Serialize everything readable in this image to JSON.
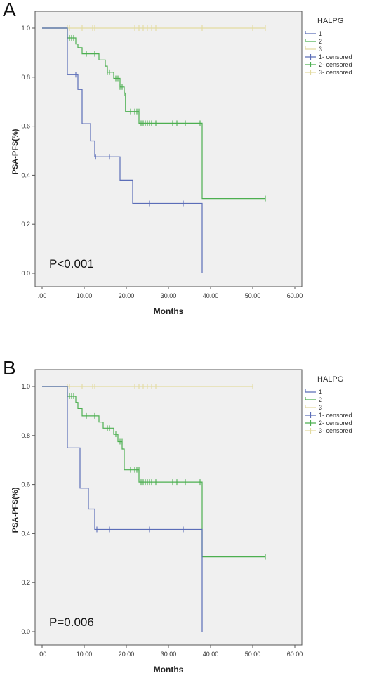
{
  "colors": {
    "g1": "#5b6db8",
    "g2": "#4caf50",
    "g3": "#e3dba0",
    "plot_bg": "#f0f0f0",
    "axis": "#555555"
  },
  "panels": [
    {
      "letter": "A",
      "pvalue": "P<0.001",
      "ylabel": "PSA-PFS(%)",
      "xlabel": "Months",
      "legend_title": "HALPG",
      "legend": [
        "1",
        "2",
        "3",
        "1- censored",
        "2- censored",
        "3- censored"
      ],
      "xticks": [
        ".00",
        "10.00",
        "20.00",
        "30.00",
        "40.00",
        "50.00",
        "60.00"
      ],
      "yticks": [
        "0.0",
        "0.2",
        "0.4",
        "0.6",
        "0.8",
        "1.0"
      ]
    },
    {
      "letter": "B",
      "pvalue": "P=0.006",
      "ylabel": "PSA-PFS(%)",
      "xlabel": "Months",
      "legend_title": "HALPG",
      "legend": [
        "1",
        "2",
        "3",
        "1- censored",
        "2- censored",
        "3- censored"
      ],
      "xticks": [
        ".00",
        "10.00",
        "20.00",
        "30.00",
        "40.00",
        "50.00",
        "60.00"
      ],
      "yticks": [
        "0.0",
        "0.2",
        "0.4",
        "0.6",
        "0.8",
        "1.0"
      ]
    }
  ],
  "chart_data": [
    {
      "type": "line",
      "title": "A",
      "xlabel": "Months",
      "ylabel": "PSA-PFS(%)",
      "xlim": [
        0,
        60
      ],
      "ylim": [
        0,
        1.0
      ],
      "annotation": "P<0.001",
      "legend_title": "HALPG",
      "series": [
        {
          "name": "1",
          "step": [
            [
              0,
              1.0
            ],
            [
              6,
              1.0
            ],
            [
              6,
              0.81
            ],
            [
              8.5,
              0.81
            ],
            [
              8.5,
              0.75
            ],
            [
              9.5,
              0.75
            ],
            [
              9.5,
              0.61
            ],
            [
              11.5,
              0.61
            ],
            [
              11.5,
              0.54
            ],
            [
              12.5,
              0.54
            ],
            [
              12.5,
              0.475
            ],
            [
              18.5,
              0.475
            ],
            [
              18.5,
              0.38
            ],
            [
              21.5,
              0.38
            ],
            [
              21.5,
              0.285
            ],
            [
              38,
              0.285
            ],
            [
              38,
              0.0
            ]
          ],
          "censored": [
            [
              8,
              0.81
            ],
            [
              12.7,
              0.475
            ],
            [
              16,
              0.475
            ],
            [
              25.5,
              0.285
            ],
            [
              33.5,
              0.285
            ]
          ]
        },
        {
          "name": "2",
          "step": [
            [
              0,
              1.0
            ],
            [
              6,
              1.0
            ],
            [
              6,
              0.96
            ],
            [
              8,
              0.96
            ],
            [
              8,
              0.935
            ],
            [
              8.5,
              0.935
            ],
            [
              8.5,
              0.92
            ],
            [
              9.5,
              0.92
            ],
            [
              9.5,
              0.895
            ],
            [
              13.5,
              0.895
            ],
            [
              13.5,
              0.87
            ],
            [
              15,
              0.87
            ],
            [
              15,
              0.845
            ],
            [
              15.5,
              0.845
            ],
            [
              15.5,
              0.82
            ],
            [
              17,
              0.82
            ],
            [
              17,
              0.795
            ],
            [
              18.5,
              0.795
            ],
            [
              18.5,
              0.76
            ],
            [
              19.5,
              0.76
            ],
            [
              19.5,
              0.735
            ],
            [
              19.8,
              0.735
            ],
            [
              19.8,
              0.66
            ],
            [
              23,
              0.66
            ],
            [
              23,
              0.612
            ],
            [
              38,
              0.612
            ],
            [
              38,
              0.305
            ],
            [
              53,
              0.305
            ]
          ],
          "censored": [
            [
              6,
              0.965
            ],
            [
              6.5,
              0.96
            ],
            [
              7,
              0.96
            ],
            [
              7.5,
              0.96
            ],
            [
              10.5,
              0.895
            ],
            [
              12.5,
              0.895
            ],
            [
              15.5,
              0.82
            ],
            [
              16,
              0.82
            ],
            [
              17.5,
              0.795
            ],
            [
              18,
              0.795
            ],
            [
              18.5,
              0.76
            ],
            [
              19,
              0.76
            ],
            [
              19.5,
              0.735
            ],
            [
              21,
              0.66
            ],
            [
              22,
              0.66
            ],
            [
              22.5,
              0.66
            ],
            [
              23,
              0.66
            ],
            [
              23.5,
              0.612
            ],
            [
              24,
              0.612
            ],
            [
              24.5,
              0.612
            ],
            [
              25,
              0.612
            ],
            [
              25.5,
              0.612
            ],
            [
              26,
              0.612
            ],
            [
              27,
              0.612
            ],
            [
              31,
              0.612
            ],
            [
              32,
              0.612
            ],
            [
              34,
              0.612
            ],
            [
              37.5,
              0.612
            ],
            [
              53,
              0.305
            ]
          ]
        },
        {
          "name": "3",
          "step": [
            [
              0,
              1.0
            ],
            [
              53,
              1.0
            ]
          ],
          "censored": [
            [
              6,
              1.0
            ],
            [
              6.5,
              1.0
            ],
            [
              9.5,
              1.0
            ],
            [
              12,
              1.0
            ],
            [
              12.5,
              1.0
            ],
            [
              22,
              1.0
            ],
            [
              23,
              1.0
            ],
            [
              24,
              1.0
            ],
            [
              25,
              1.0
            ],
            [
              26,
              1.0
            ],
            [
              27,
              1.0
            ],
            [
              38,
              1.0
            ],
            [
              50,
              1.0
            ],
            [
              53,
              1.0
            ]
          ]
        }
      ]
    },
    {
      "type": "line",
      "title": "B",
      "xlabel": "Months",
      "ylabel": "PSA-PFS(%)",
      "xlim": [
        0,
        60
      ],
      "ylim": [
        0,
        1.0
      ],
      "annotation": "P=0.006",
      "legend_title": "HALPG",
      "series": [
        {
          "name": "1",
          "step": [
            [
              0,
              1.0
            ],
            [
              6,
              1.0
            ],
            [
              6,
              0.75
            ],
            [
              9,
              0.75
            ],
            [
              9,
              0.585
            ],
            [
              11,
              0.585
            ],
            [
              11,
              0.5
            ],
            [
              12.5,
              0.5
            ],
            [
              12.5,
              0.417
            ],
            [
              38,
              0.417
            ],
            [
              38,
              0.0
            ]
          ],
          "censored": [
            [
              13,
              0.417
            ],
            [
              16,
              0.417
            ],
            [
              25.5,
              0.417
            ],
            [
              33.5,
              0.417
            ]
          ]
        },
        {
          "name": "2",
          "step": [
            [
              0,
              1.0
            ],
            [
              6,
              1.0
            ],
            [
              6,
              0.96
            ],
            [
              8,
              0.96
            ],
            [
              8,
              0.935
            ],
            [
              8.5,
              0.935
            ],
            [
              8.5,
              0.91
            ],
            [
              9.5,
              0.91
            ],
            [
              9.5,
              0.88
            ],
            [
              13.5,
              0.88
            ],
            [
              13.5,
              0.855
            ],
            [
              14.5,
              0.855
            ],
            [
              14.5,
              0.83
            ],
            [
              17,
              0.83
            ],
            [
              17,
              0.805
            ],
            [
              18,
              0.805
            ],
            [
              18,
              0.775
            ],
            [
              19,
              0.775
            ],
            [
              19,
              0.745
            ],
            [
              19.5,
              0.745
            ],
            [
              19.5,
              0.66
            ],
            [
              23,
              0.66
            ],
            [
              23,
              0.61
            ],
            [
              38,
              0.61
            ],
            [
              38,
              0.305
            ],
            [
              53,
              0.305
            ]
          ],
          "censored": [
            [
              6,
              0.965
            ],
            [
              6.5,
              0.96
            ],
            [
              7,
              0.96
            ],
            [
              7.5,
              0.96
            ],
            [
              10.5,
              0.88
            ],
            [
              12.5,
              0.88
            ],
            [
              15.5,
              0.83
            ],
            [
              16,
              0.83
            ],
            [
              17.5,
              0.805
            ],
            [
              18.5,
              0.775
            ],
            [
              19,
              0.775
            ],
            [
              21,
              0.66
            ],
            [
              22,
              0.66
            ],
            [
              22.5,
              0.66
            ],
            [
              23,
              0.66
            ],
            [
              23.5,
              0.61
            ],
            [
              24,
              0.61
            ],
            [
              24.5,
              0.61
            ],
            [
              25,
              0.61
            ],
            [
              25.5,
              0.61
            ],
            [
              26,
              0.61
            ],
            [
              27,
              0.61
            ],
            [
              31,
              0.61
            ],
            [
              32,
              0.61
            ],
            [
              34,
              0.61
            ],
            [
              37.5,
              0.61
            ],
            [
              53,
              0.305
            ]
          ]
        },
        {
          "name": "3",
          "step": [
            [
              0,
              1.0
            ],
            [
              50,
              1.0
            ]
          ],
          "censored": [
            [
              6,
              1.0
            ],
            [
              6.5,
              1.0
            ],
            [
              9.5,
              1.0
            ],
            [
              12,
              1.0
            ],
            [
              12.5,
              1.0
            ],
            [
              22,
              1.0
            ],
            [
              23,
              1.0
            ],
            [
              24,
              1.0
            ],
            [
              25,
              1.0
            ],
            [
              26,
              1.0
            ],
            [
              27,
              1.0
            ],
            [
              50,
              1.0
            ]
          ]
        }
      ]
    }
  ]
}
